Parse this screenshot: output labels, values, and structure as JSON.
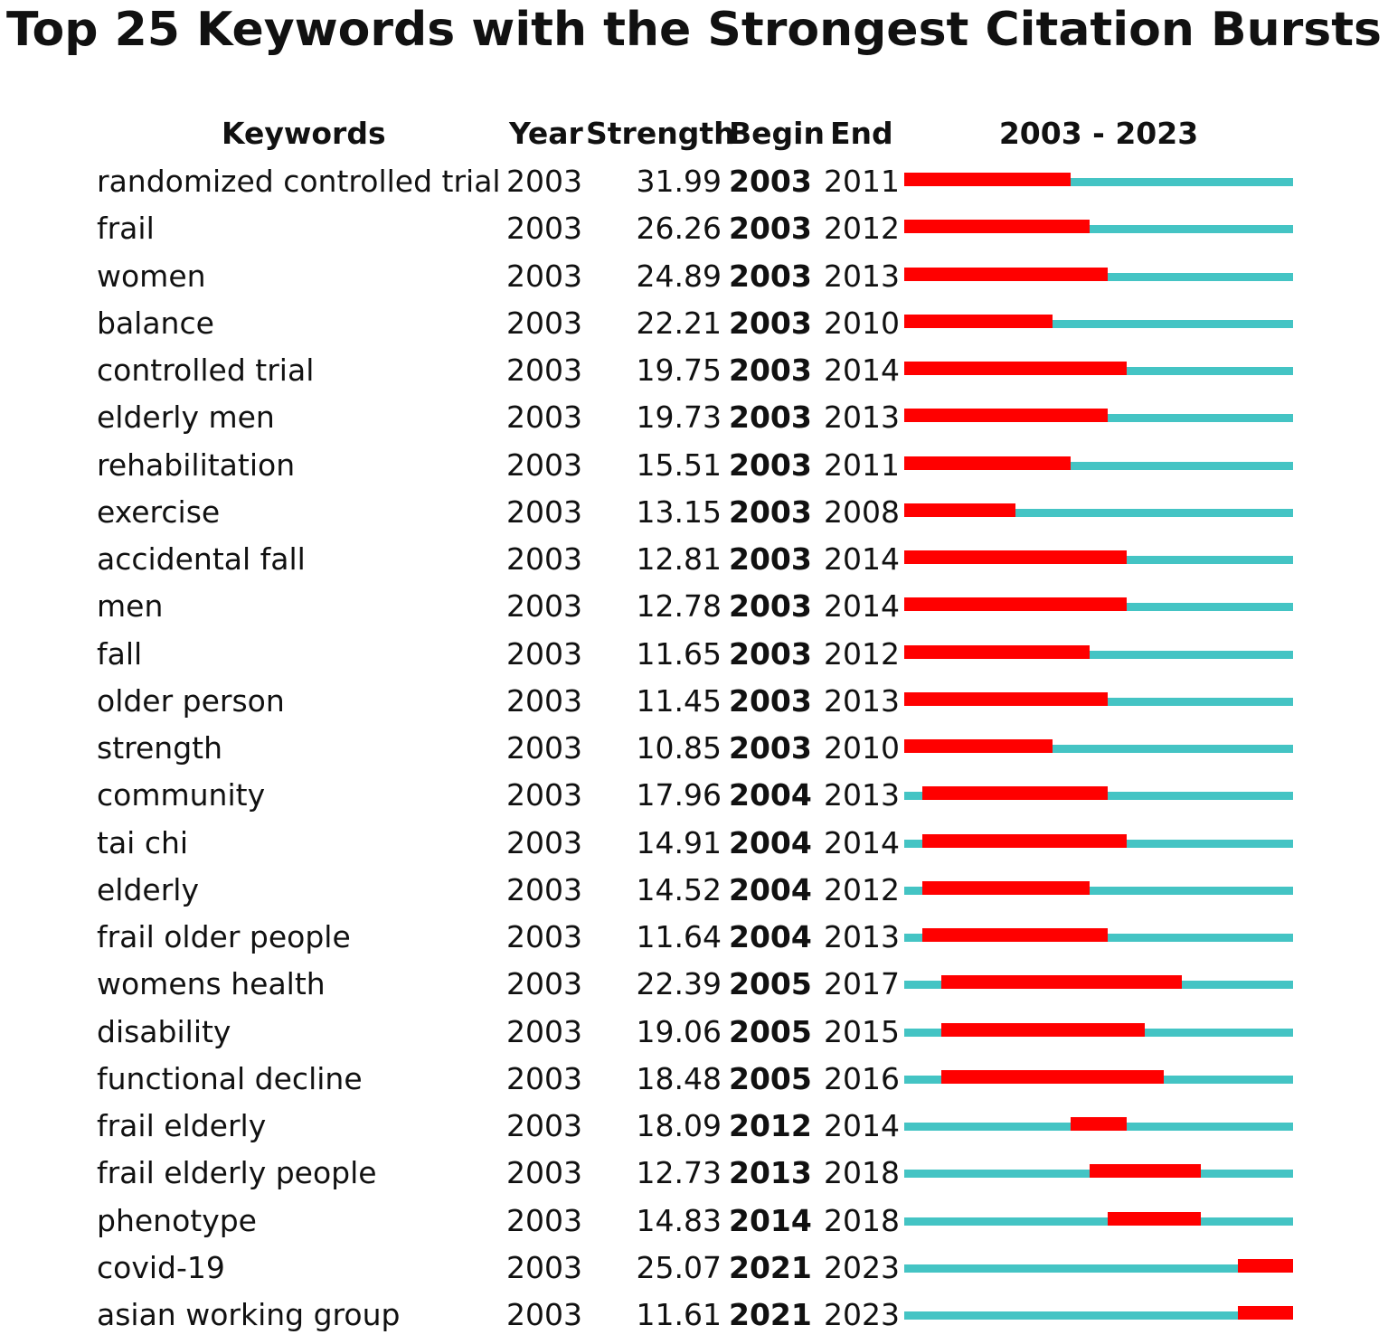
{
  "chart_data": {
    "type": "table",
    "title": "Top 25 Keywords with the Strongest Citation Bursts",
    "columns": [
      "Keywords",
      "Year",
      "Strength",
      "Begin",
      "End",
      "2003 - 2023"
    ],
    "timeline": {
      "start": 2003,
      "end": 2023
    },
    "colors": {
      "burst": "#ff0000",
      "base": "#44c4c4"
    },
    "rows": [
      {
        "keyword": "randomized controlled trial",
        "year": "2003",
        "strength": "31.99",
        "begin": "2003",
        "end": "2011"
      },
      {
        "keyword": "frail",
        "year": "2003",
        "strength": "26.26",
        "begin": "2003",
        "end": "2012"
      },
      {
        "keyword": "women",
        "year": "2003",
        "strength": "24.89",
        "begin": "2003",
        "end": "2013"
      },
      {
        "keyword": "balance",
        "year": "2003",
        "strength": "22.21",
        "begin": "2003",
        "end": "2010"
      },
      {
        "keyword": "controlled trial",
        "year": "2003",
        "strength": "19.75",
        "begin": "2003",
        "end": "2014"
      },
      {
        "keyword": "elderly men",
        "year": "2003",
        "strength": "19.73",
        "begin": "2003",
        "end": "2013"
      },
      {
        "keyword": "rehabilitation",
        "year": "2003",
        "strength": "15.51",
        "begin": "2003",
        "end": "2011"
      },
      {
        "keyword": "exercise",
        "year": "2003",
        "strength": "13.15",
        "begin": "2003",
        "end": "2008"
      },
      {
        "keyword": "accidental fall",
        "year": "2003",
        "strength": "12.81",
        "begin": "2003",
        "end": "2014"
      },
      {
        "keyword": "men",
        "year": "2003",
        "strength": "12.78",
        "begin": "2003",
        "end": "2014"
      },
      {
        "keyword": "fall",
        "year": "2003",
        "strength": "11.65",
        "begin": "2003",
        "end": "2012"
      },
      {
        "keyword": "older person",
        "year": "2003",
        "strength": "11.45",
        "begin": "2003",
        "end": "2013"
      },
      {
        "keyword": "strength",
        "year": "2003",
        "strength": "10.85",
        "begin": "2003",
        "end": "2010"
      },
      {
        "keyword": "community",
        "year": "2003",
        "strength": "17.96",
        "begin": "2004",
        "end": "2013"
      },
      {
        "keyword": "tai chi",
        "year": "2003",
        "strength": "14.91",
        "begin": "2004",
        "end": "2014"
      },
      {
        "keyword": "elderly",
        "year": "2003",
        "strength": "14.52",
        "begin": "2004",
        "end": "2012"
      },
      {
        "keyword": "frail older people",
        "year": "2003",
        "strength": "11.64",
        "begin": "2004",
        "end": "2013"
      },
      {
        "keyword": "womens health",
        "year": "2003",
        "strength": "22.39",
        "begin": "2005",
        "end": "2017"
      },
      {
        "keyword": "disability",
        "year": "2003",
        "strength": "19.06",
        "begin": "2005",
        "end": "2015"
      },
      {
        "keyword": "functional decline",
        "year": "2003",
        "strength": "18.48",
        "begin": "2005",
        "end": "2016"
      },
      {
        "keyword": "frail elderly",
        "year": "2003",
        "strength": "18.09",
        "begin": "2012",
        "end": "2014"
      },
      {
        "keyword": "frail elderly people",
        "year": "2003",
        "strength": "12.73",
        "begin": "2013",
        "end": "2018"
      },
      {
        "keyword": "phenotype",
        "year": "2003",
        "strength": "14.83",
        "begin": "2014",
        "end": "2018"
      },
      {
        "keyword": "covid-19",
        "year": "2003",
        "strength": "25.07",
        "begin": "2021",
        "end": "2023"
      },
      {
        "keyword": "asian working group",
        "year": "2003",
        "strength": "11.61",
        "begin": "2021",
        "end": "2023"
      }
    ]
  }
}
